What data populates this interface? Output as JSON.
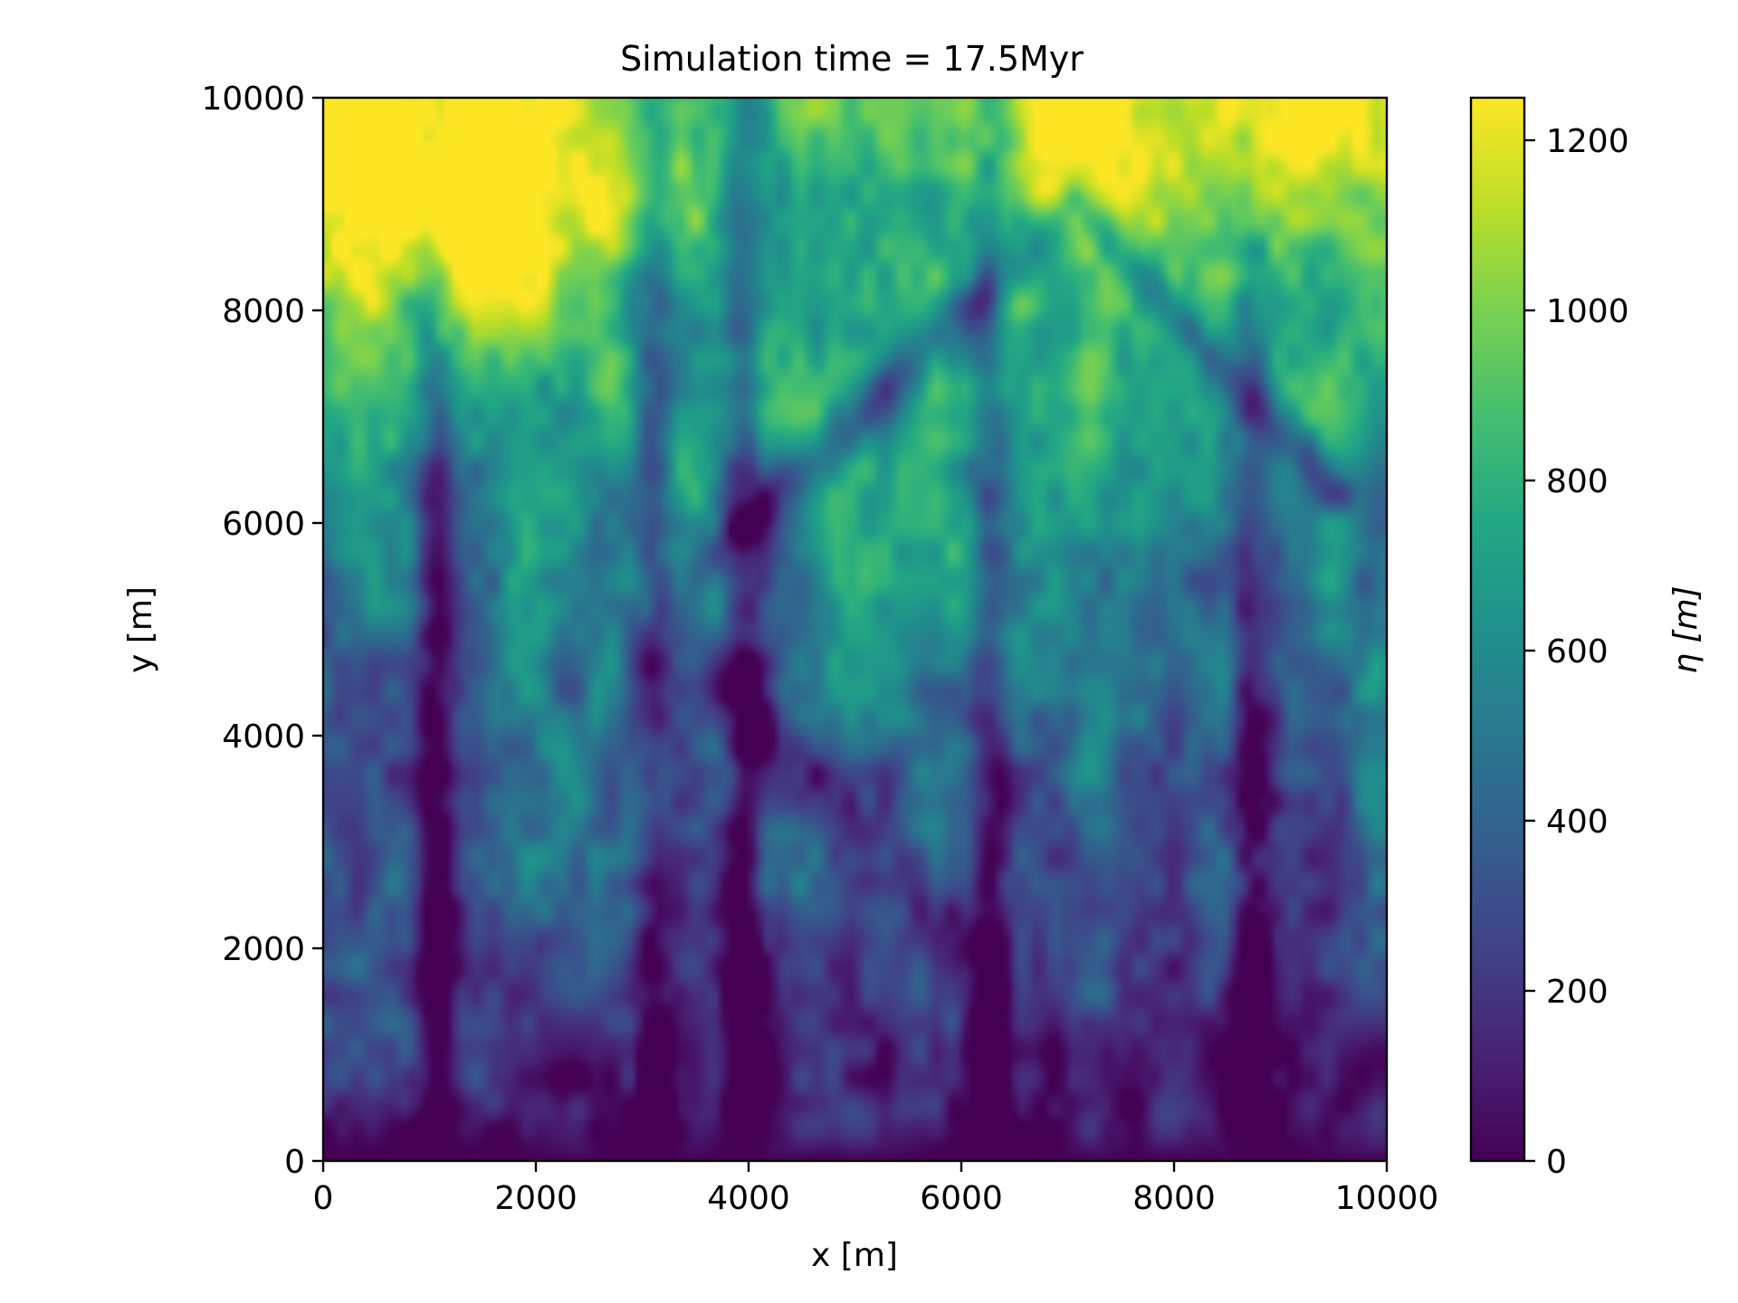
{
  "chart_data": {
    "type": "heatmap",
    "title": "Simulation time = 17.5Myr",
    "xlabel": "x [m]",
    "ylabel": "y [m]",
    "xlim": [
      0,
      10000
    ],
    "ylim": [
      0,
      10000
    ],
    "x_ticks": [
      0,
      2000,
      4000,
      6000,
      8000,
      10000
    ],
    "y_ticks": [
      0,
      2000,
      4000,
      6000,
      8000,
      10000
    ],
    "colormap": "viridis",
    "colorbar": {
      "label": "η [m]",
      "range": [
        0,
        1250
      ],
      "ticks": [
        0,
        200,
        400,
        600,
        800,
        1000,
        1200
      ]
    },
    "grid": false,
    "surface": {
      "description_units": "elevation η in m over a 10000 m × 10000 m domain",
      "base_gradient": "elevation rises from ~0 m at y=0 to ~900 m at y=10000",
      "valleys_vertical_x": [
        1050,
        3100,
        3950,
        6250,
        8750
      ],
      "fault_diagonal": {
        "from": [
          3700,
          5700
        ],
        "to": [
          7100,
          9000
        ],
        "also": [
          9500,
          6300
        ]
      },
      "peak_regions": [
        {
          "x": 1700,
          "y": 8700,
          "eta": 1180
        },
        {
          "x": 1400,
          "y": 9700,
          "eta": 1150
        },
        {
          "x": 7400,
          "y": 9800,
          "eta": 1240
        },
        {
          "x": 9800,
          "y": 9900,
          "eta": 1250
        },
        {
          "x": 200,
          "y": 9000,
          "eta": 1050
        },
        {
          "x": 6200,
          "y": 5800,
          "eta": 1000
        },
        {
          "x": 2600,
          "y": 3400,
          "eta": 850
        }
      ],
      "min_eta": 0,
      "max_eta": 1250
    },
    "colors": {
      "axis": "#000000",
      "background": "#ffffff"
    }
  }
}
